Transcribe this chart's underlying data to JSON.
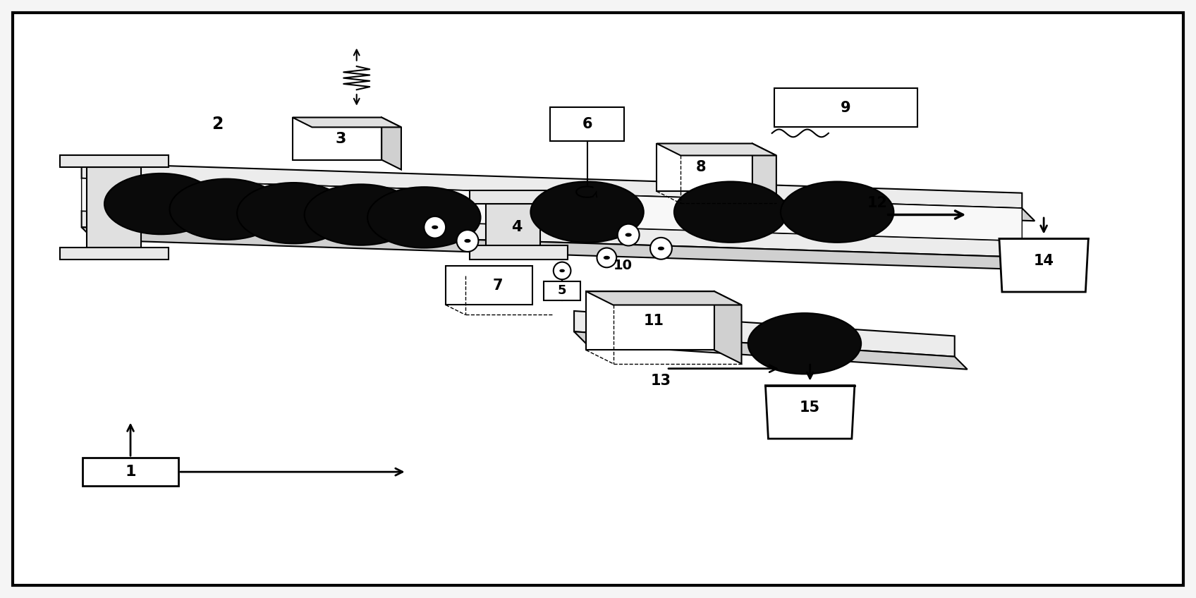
{
  "fig_width": 16.96,
  "fig_height": 8.48,
  "background_color": "#f5f5f5",
  "border_color": "#000000"
}
